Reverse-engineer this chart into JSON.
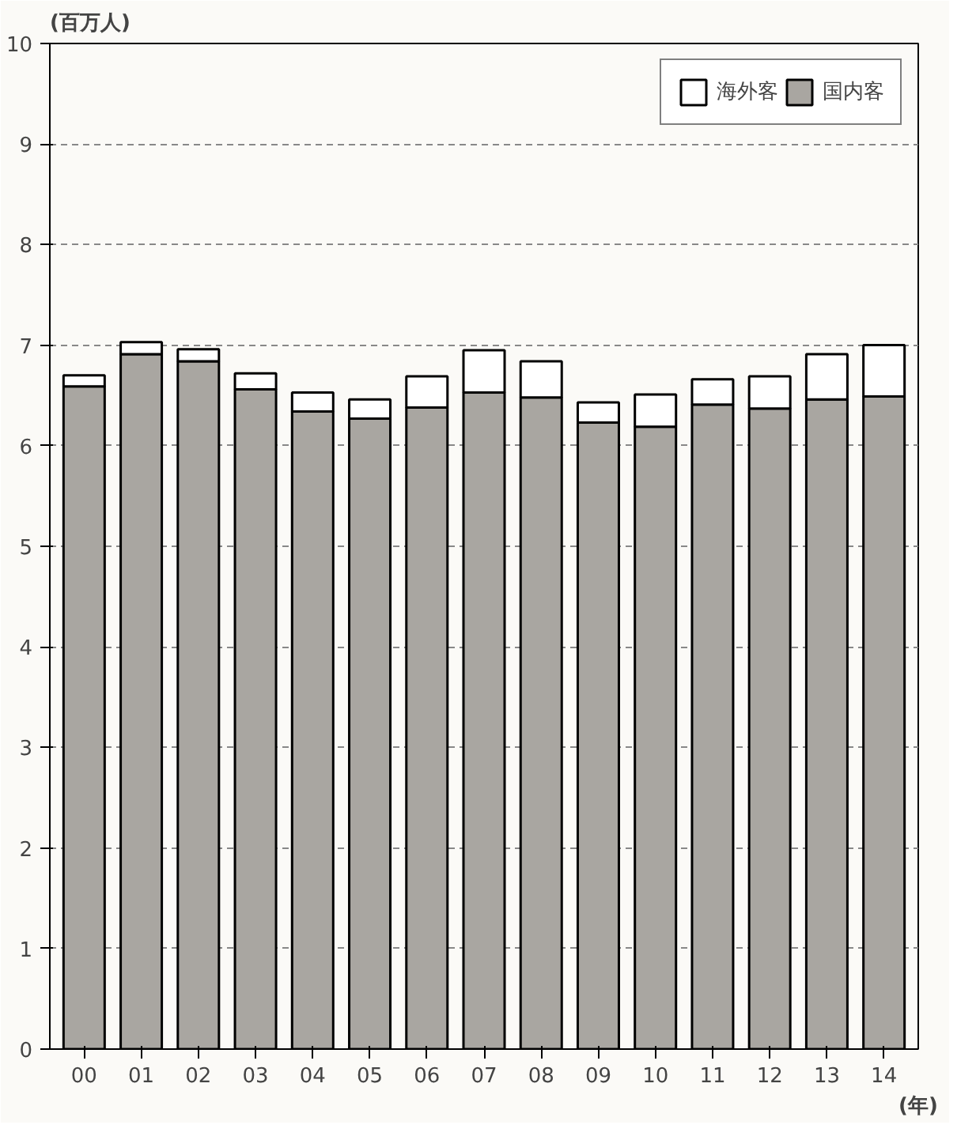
{
  "chart_data": {
    "type": "bar",
    "stacked": true,
    "ylabel": "(百万人)",
    "xlabel": "(年)",
    "categories": [
      "00",
      "01",
      "02",
      "03",
      "04",
      "05",
      "06",
      "07",
      "08",
      "09",
      "10",
      "11",
      "12",
      "13",
      "14"
    ],
    "series": [
      {
        "name": "国内客",
        "color": "#a9a6a1",
        "values": [
          6.59,
          6.91,
          6.84,
          6.56,
          6.34,
          6.27,
          6.38,
          6.53,
          6.48,
          6.23,
          6.19,
          6.41,
          6.37,
          6.46,
          6.49
        ]
      },
      {
        "name": "海外客",
        "color": "#ffffff",
        "values": [
          0.11,
          0.12,
          0.12,
          0.16,
          0.19,
          0.19,
          0.31,
          0.42,
          0.36,
          0.2,
          0.32,
          0.25,
          0.32,
          0.45,
          0.51
        ]
      }
    ],
    "ylim": [
      0,
      10
    ],
    "yticks": [
      0,
      1,
      2,
      3,
      4,
      5,
      6,
      7,
      8,
      9,
      10
    ],
    "grid": "y",
    "legend": "top right"
  }
}
